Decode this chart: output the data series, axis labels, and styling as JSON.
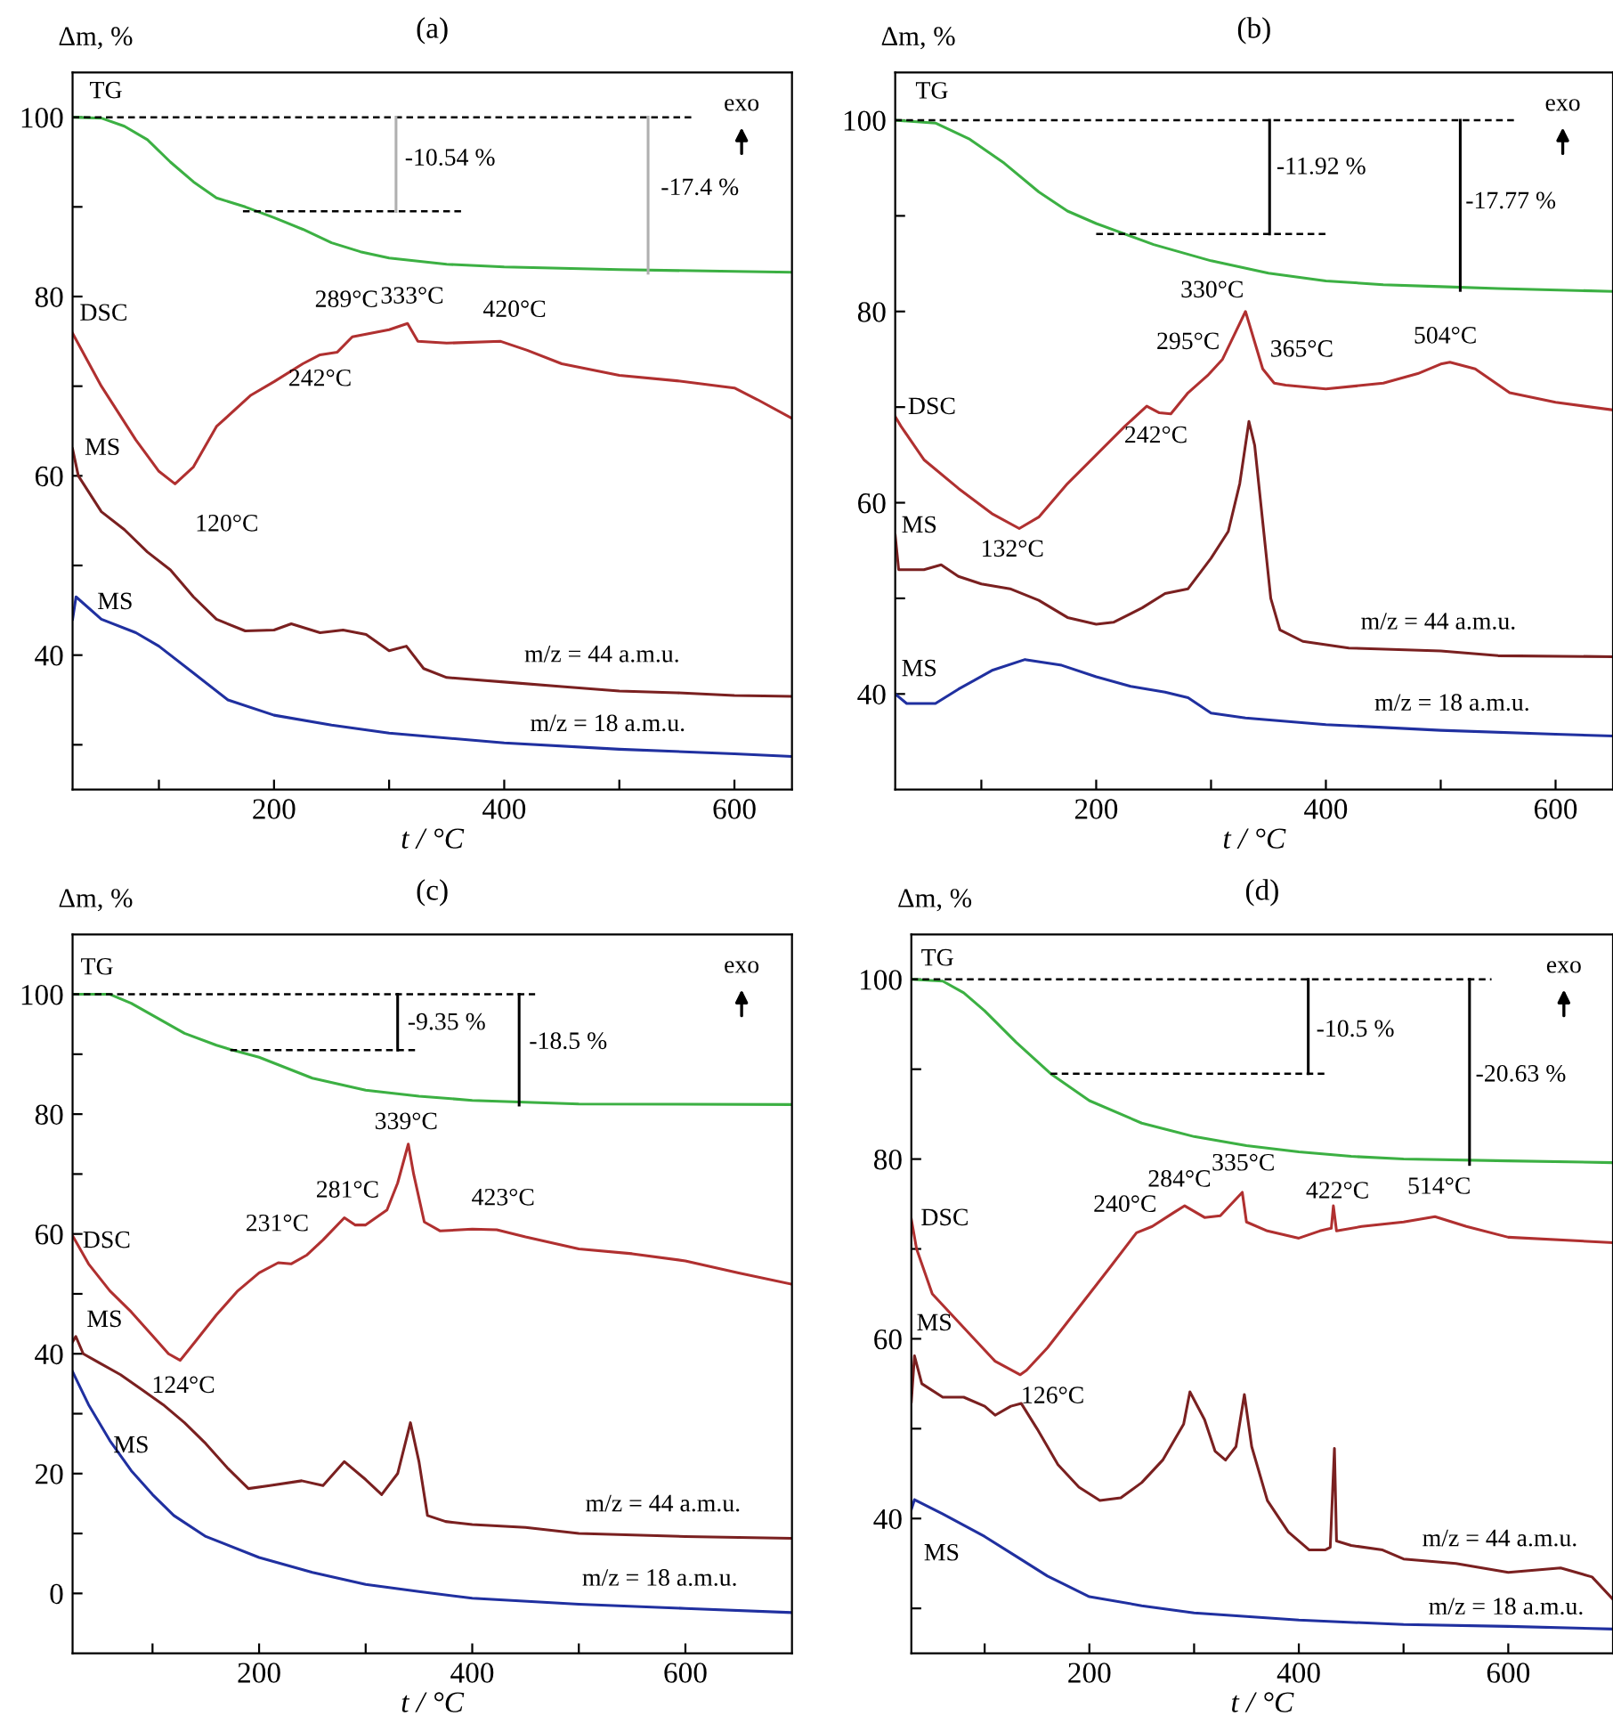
{
  "chart_data": [
    {
      "type": "line",
      "title": "(a)",
      "xlabel": "t / °C",
      "ylabel": "Δm, %",
      "xlim": [
        25,
        650
      ],
      "ylim": [
        25,
        105
      ],
      "xticks": [
        {
          "value": 100,
          "label": null
        },
        200,
        {
          "value": 300,
          "label": null
        },
        400,
        {
          "value": 500,
          "label": null
        },
        600
      ],
      "yticks": [
        {
          "value": 30,
          "label": null
        },
        40,
        {
          "value": 50,
          "label": null
        },
        60,
        {
          "value": 70,
          "label": null
        },
        80,
        {
          "value": 90,
          "label": null
        },
        100
      ],
      "series": [
        {
          "color": "#3cb043",
          "x": [
            25,
            50,
            70,
            90,
            110,
            130,
            150,
            175,
            200,
            225,
            250,
            275,
            300,
            350,
            400,
            500,
            600,
            650
          ],
          "values": [
            100,
            99.9,
            99,
            97.5,
            95,
            92.8,
            91,
            90,
            88.8,
            87.5,
            86,
            85,
            84.3,
            83.6,
            83.3,
            83,
            82.8,
            82.7
          ]
        },
        {
          "color": "#b03030",
          "x": [
            25,
            50,
            80,
            100,
            114,
            130,
            150,
            180,
            200,
            225,
            240,
            255,
            268,
            280,
            300,
            316,
            325,
            350,
            397,
            420,
            450,
            500,
            550,
            600,
            620,
            650
          ],
          "values": [
            75.9,
            70,
            64,
            60.5,
            59.1,
            61,
            65.5,
            69,
            70.5,
            72.5,
            73.5,
            73.8,
            75.5,
            75.8,
            76.3,
            77,
            75,
            74.8,
            75,
            74,
            72.5,
            71.2,
            70.6,
            69.8,
            68.5,
            66.4
          ]
        },
        {
          "color": "#7a2020",
          "x": [
            25,
            30,
            50,
            70,
            90,
            110,
            130,
            150,
            175,
            200,
            215,
            240,
            260,
            280,
            300,
            315,
            330,
            350,
            400,
            450,
            500,
            550,
            600,
            650
          ],
          "values": [
            63,
            60,
            56,
            54,
            51.5,
            49.5,
            46.5,
            44,
            42.7,
            42.8,
            43.5,
            42.5,
            42.8,
            42.3,
            40.5,
            41,
            38.5,
            37.5,
            37,
            36.5,
            36,
            35.8,
            35.5,
            35.4
          ]
        },
        {
          "color": "#2030a0",
          "x": [
            25,
            28,
            50,
            80,
            100,
            130,
            160,
            200,
            250,
            300,
            400,
            500,
            600,
            650
          ],
          "values": [
            44,
            46.5,
            44,
            42.5,
            41,
            38,
            35,
            33.3,
            32.2,
            31.3,
            30.2,
            29.5,
            29,
            28.7
          ]
        },
        {
          "color": "#000000",
          "line_style": "dashed",
          "x": [
            25,
            565
          ],
          "values": [
            100,
            100
          ]
        },
        {
          "color": "#000000",
          "line_style": "dashed",
          "x": [
            173,
            364
          ],
          "values": [
            89.5,
            89.5
          ]
        },
        {
          "color": "#b0b0b0",
          "x": [
            306,
            306
          ],
          "values": [
            100,
            89.5
          ]
        },
        {
          "color": "#b0b0b0",
          "x": [
            525,
            525
          ],
          "values": [
            100,
            82.6
          ]
        }
      ],
      "annotations": [
        "exo",
        "TG",
        "DSC",
        "MS",
        "MS",
        "120°C",
        "242°C",
        "289°C",
        "333°C",
        "420°C",
        "-10.54 %",
        "-17.4 %",
        "m/z = 44 a.m.u.",
        "m/z = 18 a.m.u."
      ]
    },
    {
      "type": "line",
      "title": "(b)",
      "xlabel": "t / °C",
      "ylabel": "Δm, %",
      "xlim": [
        25,
        650
      ],
      "ylim": [
        30,
        105
      ],
      "xticks": [
        {
          "value": 100,
          "label": null
        },
        200,
        {
          "value": 300,
          "label": null
        },
        400,
        {
          "value": 500,
          "label": null
        },
        600
      ],
      "yticks": [
        40,
        {
          "value": 50,
          "label": null
        },
        60,
        {
          "value": 70,
          "label": null
        },
        80,
        {
          "value": 90,
          "label": null
        },
        100
      ],
      "series": [
        {
          "color": "#3cb043",
          "x": [
            25,
            60,
            90,
            120,
            150,
            175,
            200,
            250,
            300,
            350,
            400,
            450,
            500,
            550,
            650
          ],
          "values": [
            100,
            99.7,
            98,
            95.5,
            92.5,
            90.5,
            89.2,
            87,
            85.3,
            84,
            83.2,
            82.8,
            82.6,
            82.4,
            82.1
          ]
        },
        {
          "color": "#b03030",
          "x": [
            25,
            30,
            50,
            80,
            110,
            133,
            150,
            175,
            200,
            225,
            244,
            255,
            265,
            280,
            297,
            310,
            320,
            330,
            335,
            345,
            355,
            365,
            400,
            450,
            480,
            500,
            508,
            530,
            560,
            600,
            650
          ],
          "values": [
            69,
            68,
            64.5,
            61.5,
            58.8,
            57.3,
            58.5,
            62,
            65,
            68,
            70.1,
            69.4,
            69.3,
            71.5,
            73.3,
            75,
            77.5,
            80,
            78,
            74,
            72.5,
            72.3,
            71.9,
            72.5,
            73.5,
            74.5,
            74.7,
            74,
            71.5,
            70.5,
            69.7
          ]
        },
        {
          "color": "#7a2020",
          "x": [
            25,
            28,
            50,
            65,
            80,
            100,
            125,
            150,
            175,
            200,
            215,
            240,
            260,
            280,
            300,
            315,
            325,
            333,
            338,
            345,
            352,
            360,
            380,
            420,
            500,
            550,
            650
          ],
          "values": [
            56.6,
            53,
            53,
            53.5,
            52.3,
            51.5,
            51,
            49.8,
            48,
            47.3,
            47.5,
            49,
            50.5,
            51,
            54.2,
            57,
            62,
            68.5,
            66,
            58,
            50,
            46.7,
            45.5,
            44.8,
            44.5,
            44,
            43.9
          ]
        },
        {
          "color": "#2030a0",
          "x": [
            25,
            35,
            60,
            80,
            110,
            138,
            170,
            200,
            230,
            260,
            280,
            300,
            330,
            400,
            500,
            600,
            650
          ],
          "values": [
            40,
            39,
            39,
            40.5,
            42.5,
            43.6,
            43,
            41.8,
            40.8,
            40.2,
            39.6,
            38,
            37.5,
            36.8,
            36.2,
            35.8,
            35.6
          ]
        },
        {
          "color": "#000000",
          "line_style": "dashed",
          "x": [
            25,
            564
          ],
          "values": [
            100,
            100
          ]
        },
        {
          "color": "#000000",
          "line_style": "dashed",
          "x": [
            200,
            400
          ],
          "values": [
            88.1,
            88.1
          ]
        },
        {
          "color": "#000000",
          "x": [
            351,
            351
          ],
          "values": [
            100,
            88.1
          ]
        },
        {
          "color": "#000000",
          "x": [
            517,
            517
          ],
          "values": [
            100,
            82.2
          ]
        }
      ],
      "annotations": [
        "exo",
        "TG",
        "DSC",
        "MS",
        "MS",
        "132°C",
        "242°C",
        "295°C",
        "330°C",
        "365°C",
        "504°C",
        "-11.92 %",
        "-17.77 %",
        "m/z = 44 a.m.u.",
        "m/z = 18 a.m.u."
      ]
    },
    {
      "type": "line",
      "title": "(c)",
      "xlabel": "t / °C",
      "ylabel": "Δm, %",
      "xlim": [
        25,
        700
      ],
      "ylim": [
        -10,
        110
      ],
      "xticks": [
        {
          "value": 100,
          "label": null
        },
        200,
        {
          "value": 300,
          "label": null
        },
        400,
        {
          "value": 500,
          "label": null
        },
        600
      ],
      "yticks": [
        0,
        {
          "value": 10,
          "label": null
        },
        20,
        {
          "value": 30,
          "label": null
        },
        40,
        {
          "value": 50,
          "label": null
        },
        60,
        {
          "value": 70,
          "label": null
        },
        80,
        {
          "value": 90,
          "label": null
        },
        100
      ],
      "series": [
        {
          "color": "#3cb043",
          "x": [
            25,
            60,
            80,
            100,
            130,
            160,
            173,
            200,
            250,
            300,
            350,
            400,
            450,
            500,
            700
          ],
          "values": [
            100,
            100,
            98.5,
            96.5,
            93.5,
            91.5,
            90.8,
            89.5,
            86,
            84,
            83,
            82.3,
            82,
            81.7,
            81.6
          ]
        },
        {
          "color": "#b03030",
          "x": [
            25,
            40,
            60,
            80,
            100,
            115,
            126,
            140,
            160,
            180,
            200,
            218,
            230,
            245,
            260,
            280,
            290,
            300,
            320,
            330,
            340,
            345,
            355,
            370,
            400,
            423,
            450,
            500,
            550,
            600,
            650,
            700
          ],
          "values": [
            59.7,
            55,
            50.5,
            47,
            43,
            40,
            38.9,
            42,
            46.5,
            50.5,
            53.5,
            55.2,
            55,
            56.5,
            59,
            62.7,
            61.5,
            61.5,
            64,
            68.5,
            75,
            70,
            62,
            60.5,
            60.8,
            60.7,
            59.5,
            57.5,
            56.7,
            55.5,
            53.5,
            51.6
          ]
        },
        {
          "color": "#7a2020",
          "x": [
            25,
            28,
            35,
            50,
            70,
            90,
            110,
            130,
            150,
            170,
            190,
            210,
            240,
            260,
            280,
            300,
            315,
            330,
            342,
            350,
            358,
            375,
            400,
            450,
            500,
            600,
            700
          ],
          "values": [
            42,
            42.9,
            40,
            38.5,
            36.5,
            34,
            31.5,
            28.5,
            25,
            21,
            17.5,
            18,
            18.8,
            18,
            22,
            19,
            16.5,
            20,
            28.5,
            22,
            13,
            12,
            11.5,
            11,
            10,
            9.5,
            9.2
          ]
        },
        {
          "color": "#2030a0",
          "x": [
            25,
            40,
            60,
            80,
            100,
            120,
            150,
            200,
            250,
            300,
            350,
            400,
            500,
            600,
            700
          ],
          "values": [
            37,
            31.5,
            25.5,
            20.5,
            16.5,
            13,
            9.5,
            6,
            3.5,
            1.5,
            0.3,
            -0.8,
            -1.8,
            -2.5,
            -3.2
          ]
        },
        {
          "color": "#000000",
          "line_style": "dashed",
          "x": [
            25,
            459
          ],
          "values": [
            100,
            100
          ]
        },
        {
          "color": "#000000",
          "line_style": "dashed",
          "x": [
            173,
            348
          ],
          "values": [
            90.7,
            90.7
          ]
        },
        {
          "color": "#000000",
          "x": [
            330,
            330
          ],
          "values": [
            100,
            90.7
          ]
        },
        {
          "color": "#000000",
          "x": [
            444,
            444
          ],
          "values": [
            100,
            81.5
          ]
        }
      ],
      "annotations": [
        "exo",
        "TG",
        "DSC",
        "MS",
        "MS",
        "124°C",
        "231°C",
        "281°C",
        "339°C",
        "423°C",
        "-9.35 %",
        "-18.5 %",
        "m/z = 44 a.m.u.",
        "m/z = 18 a.m.u."
      ]
    },
    {
      "type": "line",
      "title": "(d)",
      "xlabel": "t / °C",
      "ylabel": "Δm, %",
      "xlim": [
        30,
        700
      ],
      "ylim": [
        25,
        105
      ],
      "xticks": [
        {
          "value": 100,
          "label": null
        },
        200,
        {
          "value": 300,
          "label": null
        },
        400,
        {
          "value": 500,
          "label": null
        },
        600
      ],
      "yticks": [
        {
          "value": 30,
          "label": null
        },
        40,
        {
          "value": 50,
          "label": null
        },
        60,
        {
          "value": 70,
          "label": null
        },
        80,
        {
          "value": 90,
          "label": null
        },
        100
      ],
      "series": [
        {
          "color": "#3cb043",
          "x": [
            30,
            60,
            80,
            100,
            130,
            163,
            200,
            250,
            300,
            350,
            400,
            450,
            500,
            600,
            700
          ],
          "values": [
            100,
            99.8,
            98.5,
            96.5,
            93,
            89.5,
            86.5,
            84,
            82.5,
            81.5,
            80.8,
            80.3,
            80,
            79.8,
            79.6
          ]
        },
        {
          "color": "#b03030",
          "x": [
            30,
            35,
            50,
            70,
            90,
            110,
            134,
            140,
            160,
            180,
            200,
            220,
            245,
            260,
            280,
            291,
            310,
            325,
            346,
            350,
            370,
            400,
            420,
            431,
            433,
            436,
            460,
            500,
            530,
            560,
            600,
            700
          ],
          "values": [
            73.3,
            70,
            65,
            62.5,
            60,
            57.5,
            56,
            56.5,
            59,
            62,
            65,
            68,
            71.8,
            72.5,
            74,
            74.8,
            73.5,
            73.7,
            76.3,
            73,
            72,
            71.2,
            72,
            72.3,
            74.8,
            72,
            72.5,
            73,
            73.6,
            72.5,
            71.3,
            70.7
          ]
        },
        {
          "color": "#7a2020",
          "x": [
            30,
            33,
            40,
            60,
            80,
            100,
            110,
            125,
            135,
            150,
            170,
            190,
            210,
            230,
            250,
            270,
            290,
            296,
            310,
            320,
            330,
            340,
            348,
            355,
            370,
            390,
            410,
            425,
            430,
            434,
            436,
            450,
            480,
            500,
            550,
            600,
            650,
            680,
            700
          ],
          "values": [
            53,
            58.1,
            55,
            53.5,
            53.5,
            52.5,
            51.5,
            52.5,
            52.8,
            50,
            46,
            43.5,
            42,
            42.3,
            44,
            46.5,
            50.5,
            54.1,
            51,
            47.5,
            46.5,
            48,
            53.8,
            48,
            42,
            38.5,
            36.5,
            36.5,
            36.8,
            47.8,
            37.5,
            37,
            36.5,
            35.5,
            35,
            34,
            34.5,
            33.5,
            31
          ]
        },
        {
          "color": "#2030a0",
          "x": [
            30,
            33,
            60,
            100,
            130,
            160,
            200,
            250,
            300,
            400,
            500,
            600,
            700
          ],
          "values": [
            41,
            42.1,
            40.5,
            38,
            35.8,
            33.6,
            31.3,
            30.3,
            29.5,
            28.7,
            28.2,
            28,
            27.7
          ]
        },
        {
          "color": "#000000",
          "line_style": "dashed",
          "x": [
            30,
            584
          ],
          "values": [
            100,
            100
          ]
        },
        {
          "color": "#000000",
          "line_style": "dashed",
          "x": [
            163,
            426
          ],
          "values": [
            89.5,
            89.5
          ]
        },
        {
          "color": "#000000",
          "x": [
            409,
            409
          ],
          "values": [
            100,
            89.5
          ]
        },
        {
          "color": "#000000",
          "x": [
            563,
            563
          ],
          "values": [
            100,
            79.4
          ]
        }
      ],
      "annotations": [
        "exo",
        "TG",
        "DSC",
        "MS",
        "MS",
        "126°C",
        "240°C",
        "284°C",
        "335°C",
        "422°C",
        "514°C",
        "-10.5 %",
        "-20.63 %",
        "m/z = 44 a.m.u.",
        "m/z = 18 a.m.u."
      ]
    }
  ]
}
